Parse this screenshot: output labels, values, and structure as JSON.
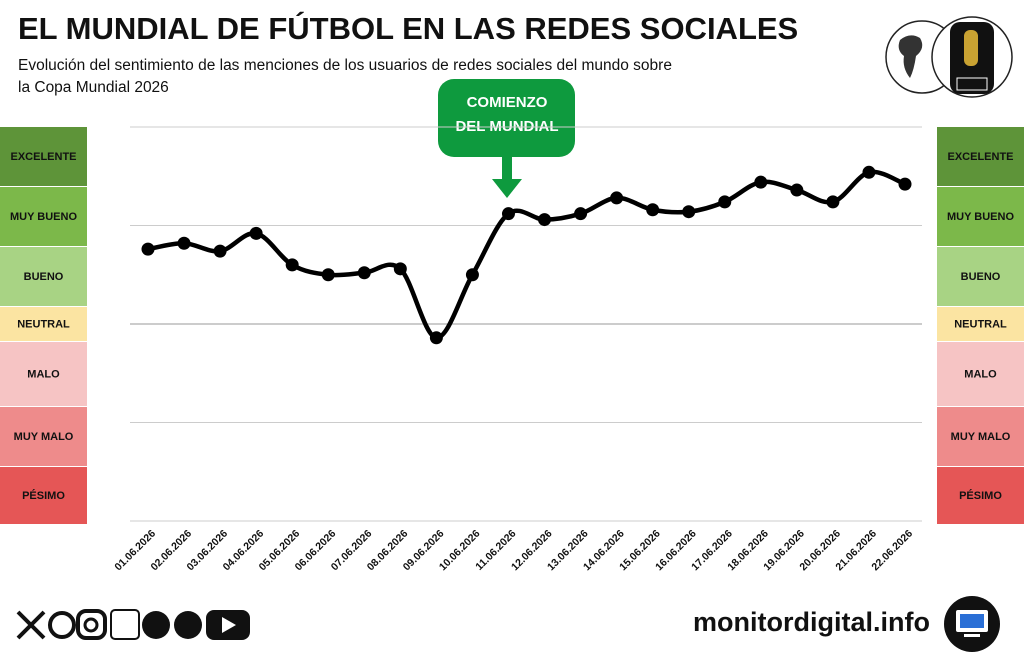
{
  "chart_data": {
    "type": "line",
    "title": "EL MUNDIAL DE FÚTBOL EN LAS REDES SOCIALES",
    "subtitle": [
      "Evolución del sentimiento de las menciones de los usuarios de redes sociales del mundo sobre",
      "la Copa Mundial 2026"
    ],
    "annotation": [
      "COMIENZO",
      "DEL MUNDIAL"
    ],
    "categories": [
      "01.06.2026",
      "02.06.2026",
      "03.06.2026",
      "04.06.2026",
      "05.06.2026",
      "06.06.2026",
      "07.06.2026",
      "08.06.2026",
      "09.06.2026",
      "10.06.2026",
      "11.06.2026",
      "12.06.2026",
      "13.06.2026",
      "14.06.2026",
      "15.06.2026",
      "16.06.2026",
      "17.06.2026",
      "18.06.2026",
      "19.06.2026",
      "20.06.2026",
      "21.06.2026",
      "22.06.2026"
    ],
    "series": [
      {
        "name": "Sentimiento",
        "color": "#000000",
        "values": [
          38,
          41,
          37,
          46,
          30,
          25,
          26,
          28,
          -7,
          25,
          56,
          53,
          56,
          64,
          58,
          57,
          62,
          72,
          68,
          62,
          77,
          71
        ]
      }
    ],
    "ylim": [
      -100,
      100
    ],
    "yticks": [
      -100,
      -50,
      0,
      50,
      100
    ],
    "grid": true,
    "sentiment_levels": [
      {
        "label": "EXCELENTE",
        "color": "#5e9439"
      },
      {
        "label": "MUY BUENO",
        "color": "#7cb84a"
      },
      {
        "label": "BUENO",
        "color": "#a8d384"
      },
      {
        "label": "NEUTRAL",
        "color": "#fbe4a2"
      },
      {
        "label": "MALO",
        "color": "#f6c4c4"
      },
      {
        "label": "MUY MALO",
        "color": "#ee8b8b"
      },
      {
        "label": "PÉSIMO",
        "color": "#e55656"
      }
    ]
  },
  "footer": {
    "website": "monitordigital.info"
  }
}
